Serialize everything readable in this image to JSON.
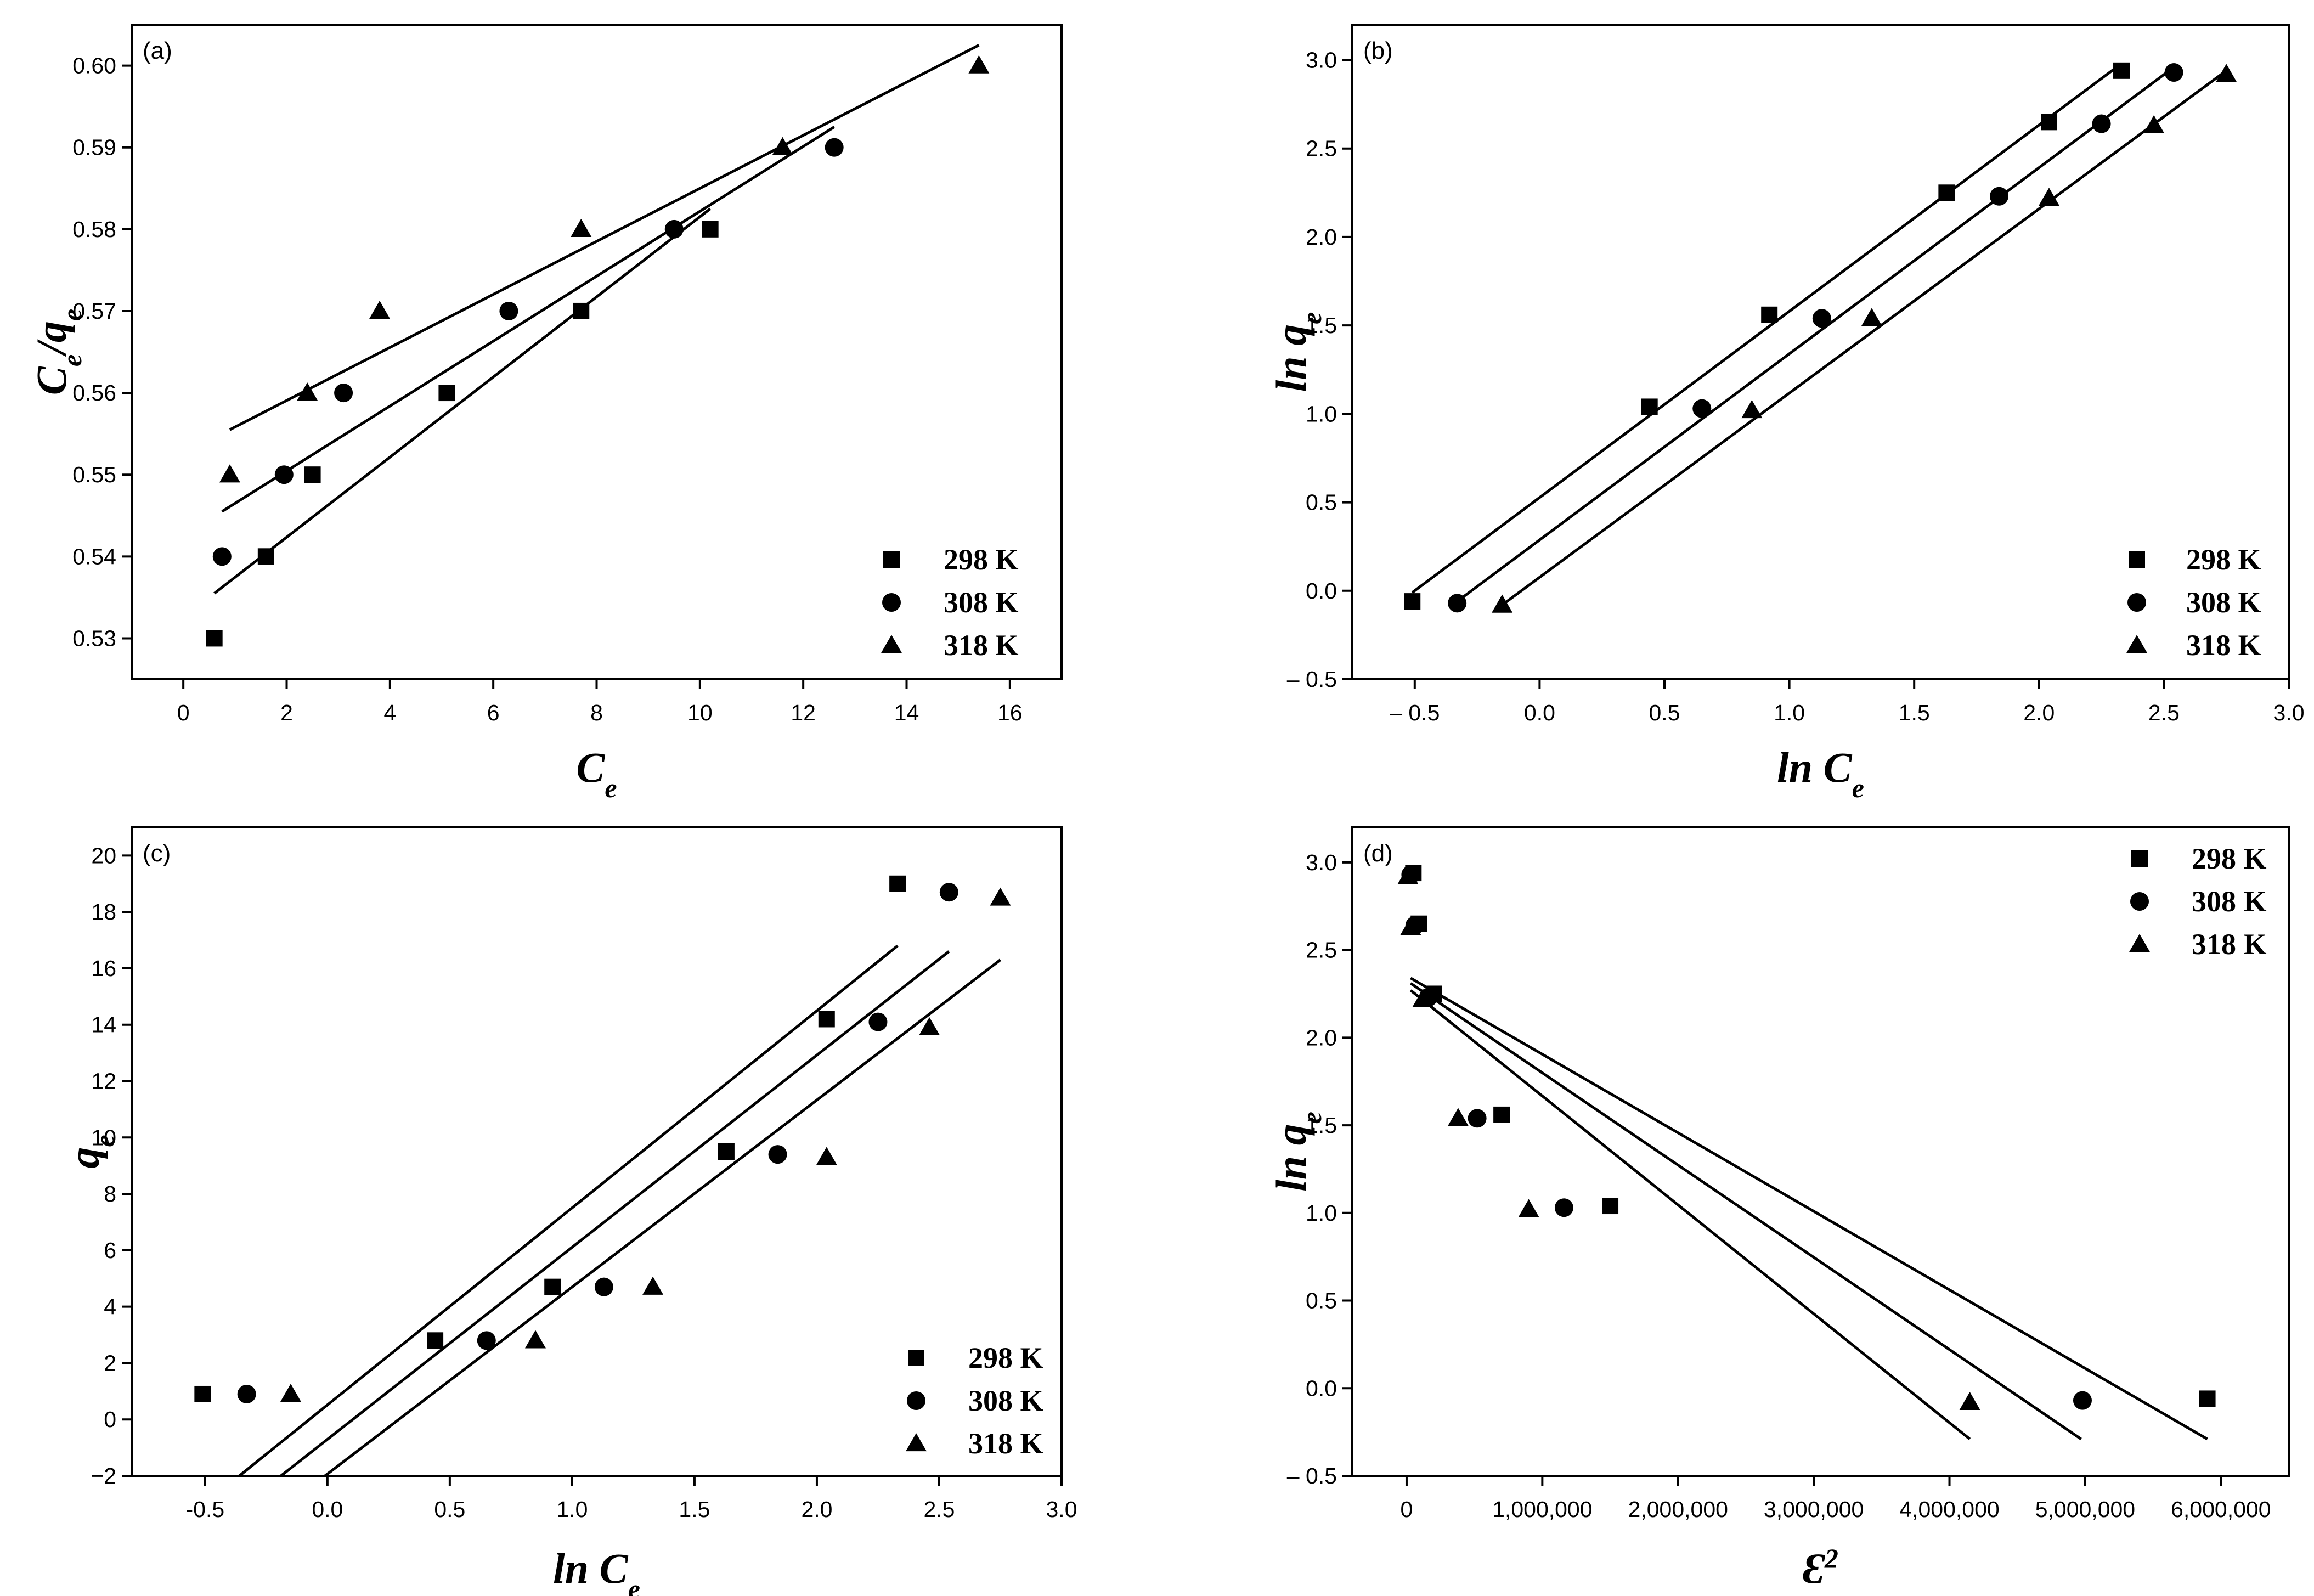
{
  "chart_data": [
    {
      "type": "scatter",
      "panel_label": "(a)",
      "xlabel": "C",
      "xlabel_sub": "e",
      "ylabel_parts": [
        "C",
        "e",
        "/",
        "q",
        "e"
      ],
      "xlim": [
        -1,
        17
      ],
      "ylim": [
        0.525,
        0.605
      ],
      "x_ticks": [
        0,
        2,
        4,
        6,
        8,
        10,
        12,
        14,
        16
      ],
      "x_tick_labels": [
        "0",
        "2",
        "4",
        "6",
        "8",
        "10",
        "12",
        "14",
        "16"
      ],
      "y_ticks": [
        0.53,
        0.54,
        0.55,
        0.56,
        0.57,
        0.58,
        0.59,
        0.6
      ],
      "y_tick_labels": [
        "0.53",
        "0.54",
        "0.55",
        "0.56",
        "0.57",
        "0.58",
        "0.59",
        "0.60"
      ],
      "legend_position": "bottom-right",
      "series": [
        {
          "name": "298 K",
          "marker": "square",
          "x": [
            0.6,
            1.6,
            2.5,
            5.1,
            7.7,
            10.2
          ],
          "y": [
            0.53,
            0.54,
            0.55,
            0.56,
            0.57,
            0.58
          ],
          "fit": [
            [
              0.6,
              0.5355
            ],
            [
              10.2,
              0.5825
            ]
          ]
        },
        {
          "name": "308 K",
          "marker": "circle",
          "x": [
            0.75,
            1.95,
            3.1,
            6.3,
            9.5,
            12.6
          ],
          "y": [
            0.54,
            0.55,
            0.56,
            0.57,
            0.58,
            0.59
          ],
          "fit": [
            [
              0.75,
              0.5455
            ],
            [
              12.6,
              0.5925
            ]
          ]
        },
        {
          "name": "318 K",
          "marker": "triangle",
          "x": [
            0.9,
            2.4,
            3.8,
            7.7,
            11.6,
            15.4
          ],
          "y": [
            0.55,
            0.56,
            0.57,
            0.58,
            0.59,
            0.6
          ],
          "fit": [
            [
              0.9,
              0.5555
            ],
            [
              15.4,
              0.6025
            ]
          ]
        }
      ]
    },
    {
      "type": "scatter",
      "panel_label": "(b)",
      "xlabel": "ln C",
      "xlabel_sub": "e",
      "ylabel_parts": [
        "ln q",
        "e"
      ],
      "xlim": [
        -0.75,
        3.0
      ],
      "ylim": [
        -0.5,
        3.2
      ],
      "x_ticks": [
        -0.5,
        0,
        0.5,
        1,
        1.5,
        2,
        2.5,
        3
      ],
      "x_tick_labels": [
        "– 0.5",
        "0.0",
        "0.5",
        "1.0",
        "1.5",
        "2.0",
        "2.5",
        "3.0"
      ],
      "y_ticks": [
        -0.5,
        0,
        0.5,
        1,
        1.5,
        2,
        2.5,
        3
      ],
      "y_tick_labels": [
        "– 0.5",
        "0.0",
        "0.5",
        "1.0",
        "1.5",
        "2.0",
        "2.5",
        "3.0"
      ],
      "legend_position": "bottom-right",
      "series": [
        {
          "name": "298 K",
          "marker": "square",
          "x": [
            -0.51,
            0.44,
            0.92,
            1.63,
            2.04,
            2.33
          ],
          "y": [
            -0.06,
            1.04,
            1.56,
            2.25,
            2.65,
            2.94
          ],
          "fit": [
            [
              -0.51,
              -0.01
            ],
            [
              2.33,
              2.98
            ]
          ]
        },
        {
          "name": "308 K",
          "marker": "circle",
          "x": [
            -0.33,
            0.65,
            1.13,
            1.84,
            2.25,
            2.54
          ],
          "y": [
            -0.07,
            1.03,
            1.54,
            2.23,
            2.64,
            2.93
          ],
          "fit": [
            [
              -0.33,
              -0.06
            ],
            [
              2.54,
              2.96
            ]
          ]
        },
        {
          "name": "318 K",
          "marker": "triangle",
          "x": [
            -0.15,
            0.85,
            1.33,
            2.04,
            2.46,
            2.75
          ],
          "y": [
            -0.08,
            1.02,
            1.54,
            2.22,
            2.63,
            2.92
          ],
          "fit": [
            [
              -0.15,
              -0.08
            ],
            [
              2.75,
              2.94
            ]
          ]
        }
      ]
    },
    {
      "type": "scatter",
      "panel_label": "(c)",
      "xlabel": "ln C",
      "xlabel_sub": "e",
      "ylabel_parts": [
        "q",
        "e"
      ],
      "xlim": [
        -0.8,
        3.0
      ],
      "ylim": [
        -2,
        21
      ],
      "x_ticks": [
        -0.5,
        0,
        0.5,
        1,
        1.5,
        2,
        2.5,
        3
      ],
      "x_tick_labels": [
        "-0.5",
        "0.0",
        "0.5",
        "1.0",
        "1.5",
        "2.0",
        "2.5",
        "3.0"
      ],
      "y_ticks": [
        -2,
        0,
        2,
        4,
        6,
        8,
        10,
        12,
        14,
        16,
        18,
        20
      ],
      "y_tick_labels": [
        "−2",
        "0",
        "2",
        "4",
        "6",
        "8",
        "10",
        "12",
        "14",
        "16",
        "18",
        "20"
      ],
      "legend_position": "bottom-right",
      "series": [
        {
          "name": "298 K",
          "marker": "square",
          "x": [
            -0.51,
            0.44,
            0.92,
            1.63,
            2.04,
            2.33
          ],
          "y": [
            0.9,
            2.8,
            4.7,
            9.5,
            14.2,
            19.0
          ],
          "fit": [
            [
              -0.36,
              -2.0
            ],
            [
              2.33,
              16.8
            ]
          ]
        },
        {
          "name": "308 K",
          "marker": "circle",
          "x": [
            -0.33,
            0.65,
            1.13,
            1.84,
            2.25,
            2.54
          ],
          "y": [
            0.9,
            2.8,
            4.7,
            9.4,
            14.1,
            18.7
          ],
          "fit": [
            [
              -0.19,
              -2.0
            ],
            [
              2.54,
              16.6
            ]
          ]
        },
        {
          "name": "318 K",
          "marker": "triangle",
          "x": [
            -0.15,
            0.85,
            1.33,
            2.04,
            2.46,
            2.75
          ],
          "y": [
            0.9,
            2.8,
            4.7,
            9.3,
            13.9,
            18.5
          ],
          "fit": [
            [
              -0.01,
              -2.0
            ],
            [
              2.75,
              16.3
            ]
          ]
        }
      ]
    },
    {
      "type": "scatter",
      "panel_label": "(d)",
      "xlabel": "Ɛ",
      "xlabel_sup": "2",
      "ylabel_parts": [
        "ln q",
        "e"
      ],
      "xlim": [
        -400000,
        6500000
      ],
      "ylim": [
        -0.5,
        3.2
      ],
      "x_ticks": [
        0,
        1000000,
        2000000,
        3000000,
        4000000,
        5000000,
        6000000
      ],
      "x_tick_labels": [
        "0",
        "1,000,000",
        "2,000,000",
        "3,000,000",
        "4,000,000",
        "5,000,000",
        "6,000,000"
      ],
      "y_ticks": [
        -0.5,
        0,
        0.5,
        1,
        1.5,
        2,
        2.5,
        3
      ],
      "y_tick_labels": [
        "– 0.5",
        "0.0",
        "0.5",
        "1.0",
        "1.5",
        "2.0",
        "2.5",
        "3.0"
      ],
      "legend_position": "top-right",
      "series": [
        {
          "name": "298 K",
          "marker": "square",
          "x": [
            5900000,
            1500000,
            700000,
            200000,
            90000,
            50000
          ],
          "y": [
            -0.06,
            1.04,
            1.56,
            2.25,
            2.65,
            2.94
          ],
          "fit": [
            [
              30000,
              2.34
            ],
            [
              5900000,
              -0.29
            ]
          ]
        },
        {
          "name": "308 K",
          "marker": "circle",
          "x": [
            4980000,
            1160000,
            520000,
            160000,
            60000,
            30000
          ],
          "y": [
            -0.07,
            1.03,
            1.54,
            2.23,
            2.64,
            2.93
          ],
          "fit": [
            [
              30000,
              2.31
            ],
            [
              4970000,
              -0.29
            ]
          ]
        },
        {
          "name": "318 K",
          "marker": "triangle",
          "x": [
            4150000,
            900000,
            380000,
            120000,
            30000,
            10000
          ],
          "y": [
            -0.08,
            1.02,
            1.54,
            2.22,
            2.63,
            2.92
          ],
          "fit": [
            [
              30000,
              2.27
            ],
            [
              4150000,
              -0.29
            ]
          ]
        }
      ]
    }
  ]
}
